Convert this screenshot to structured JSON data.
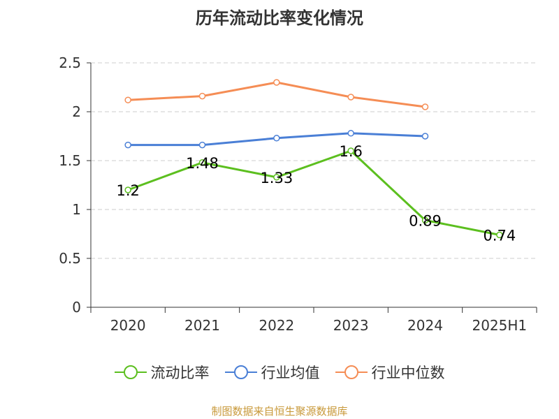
{
  "title": "历年流动比率变化情况",
  "source": "制图数据来自恒生聚源数据库",
  "colors": {
    "axis": "#333333",
    "grid": "#cccccc",
    "text": "#333333",
    "source": "#c8993a"
  },
  "chart_data": {
    "type": "line",
    "title": "历年流动比率变化情况",
    "categories": [
      "2020",
      "2021",
      "2022",
      "2023",
      "2024",
      "2025H1"
    ],
    "ylim": [
      0,
      2.5
    ],
    "yticks": [
      "0",
      "0.5",
      "1",
      "1.5",
      "2",
      "2.5"
    ],
    "grid": true,
    "legend_position": "bottom",
    "series": [
      {
        "name": "流动比率",
        "color": "#5cbf1f",
        "values": [
          1.2,
          1.48,
          1.33,
          1.6,
          0.89,
          0.74
        ],
        "data_labels": [
          "1.2",
          "1.48",
          "1.33",
          "1.6",
          "0.89",
          "0.74"
        ]
      },
      {
        "name": "行业均值",
        "color": "#4a7fd6",
        "values": [
          1.66,
          1.66,
          1.73,
          1.78,
          1.75,
          null
        ]
      },
      {
        "name": "行业中位数",
        "color": "#f58d55",
        "values": [
          2.12,
          2.16,
          2.3,
          2.15,
          2.05,
          null
        ]
      }
    ]
  }
}
